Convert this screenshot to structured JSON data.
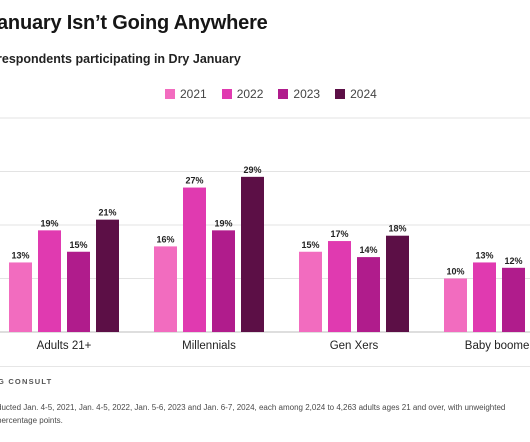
{
  "header": {
    "title": "anuary Isn’t Going Anywhere",
    "subtitle": "respondents participating in Dry January"
  },
  "chart_data": {
    "type": "bar",
    "categories": [
      "Adults 21+",
      "Millennials",
      "Gen Xers",
      "Baby boomer"
    ],
    "series": [
      {
        "name": "2021",
        "color": "#f26cbf",
        "values": [
          13,
          16,
          15,
          10
        ],
        "labels": [
          "13%",
          "16%",
          "15%",
          "10%"
        ]
      },
      {
        "name": "2022",
        "color": "#e03ab0",
        "values": [
          19,
          27,
          17,
          13
        ],
        "labels": [
          "19%",
          "27%",
          "17%",
          "13%"
        ]
      },
      {
        "name": "2023",
        "color": "#b01c8c",
        "values": [
          15,
          19,
          14,
          12
        ],
        "labels": [
          "15%",
          "19%",
          "14%",
          "12%"
        ]
      },
      {
        "name": "2024",
        "color": "#5c0f46",
        "values": [
          21,
          29,
          18,
          null
        ],
        "labels": [
          "21%",
          "29%",
          "18%",
          ""
        ]
      }
    ],
    "title": "anuary Isn’t Going Anywhere",
    "subtitle": "respondents participating in Dry January",
    "ylim": [
      0,
      40
    ],
    "grid": true,
    "legend_position": "top-center"
  },
  "footer": {
    "logo_text": "G CONSULT",
    "note_line1": "ducted Jan. 4-5, 2021, Jan. 4-5, 2022, Jan. 5-6, 2023 and Jan. 6-7, 2024, each among 2,024 to 4,263 adults ages 21 and over, with unweighted",
    "note_line2": "percentage points."
  }
}
